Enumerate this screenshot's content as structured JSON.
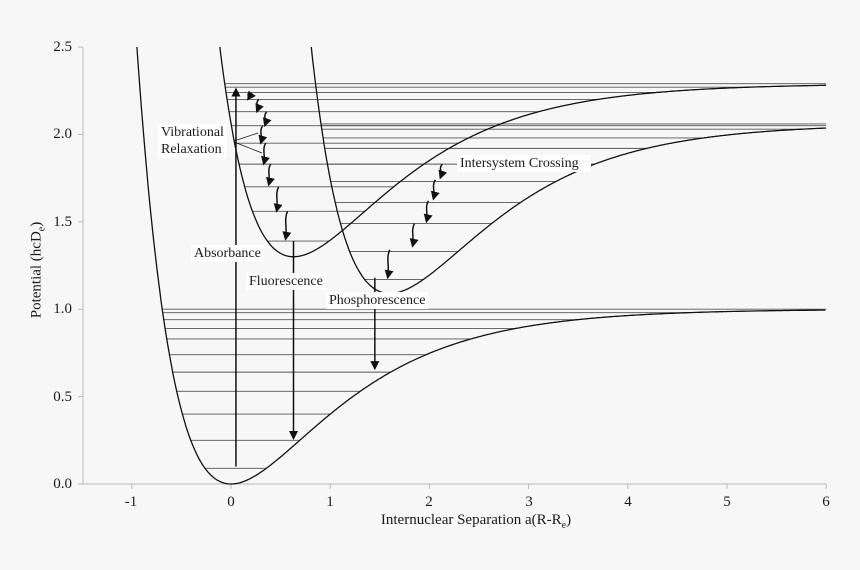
{
  "chart_data": {
    "type": "line",
    "title": "",
    "xlabel": "Internuclear Separation  a(R-R",
    "xlabel_sub": "e",
    "xlabel_end": ")",
    "ylabel": "Potential  (hcD",
    "ylabel_sub": "e",
    "ylabel_end": ")",
    "xlim": [
      -1.5,
      6
    ],
    "ylim": [
      0,
      2.5
    ],
    "xticks": [
      "-1",
      "0",
      "1",
      "2",
      "3",
      "4",
      "5",
      "6"
    ],
    "yticks": [
      "0.0",
      "0.5",
      "1.0",
      "1.5",
      "2.0",
      "2.5"
    ],
    "grid": false,
    "background": "#f7f7f7",
    "line_color": "#111111",
    "curves": [
      {
        "id": "ground",
        "x_min": 0,
        "y_min": 0,
        "depth": 1.0,
        "levels": [
          0.09,
          0.25,
          0.4,
          0.53,
          0.64,
          0.74,
          0.83,
          0.89,
          0.94,
          0.98,
          1.0
        ]
      },
      {
        "id": "singlet",
        "x_min": 0.63,
        "y_min": 1.3,
        "depth": 0.99,
        "levels": [
          1.39,
          1.56,
          1.7,
          1.83,
          1.95,
          2.05,
          2.13,
          2.2,
          2.24,
          2.27,
          2.29
        ]
      },
      {
        "id": "triplet",
        "x_min": 1.6,
        "y_min": 1.09,
        "depth": 0.97,
        "levels": [
          1.17,
          1.33,
          1.49,
          1.61,
          1.73,
          1.83,
          1.92,
          1.98,
          2.03,
          2.05,
          2.06
        ]
      }
    ],
    "transitions": [
      {
        "name": "Absorbance",
        "x": 0.05,
        "from": 0.1,
        "to": 2.26
      },
      {
        "name": "Fluorescence",
        "x": 0.63,
        "from": 1.39,
        "to": 0.26
      },
      {
        "name": "Phosphorescence",
        "x": 1.45,
        "from": 1.18,
        "to": 0.66
      }
    ],
    "relaxation_arrows": [
      {
        "x": 0.17,
        "from": 2.24,
        "to": 2.2
      },
      {
        "x": 0.26,
        "from": 2.2,
        "to": 2.13
      },
      {
        "x": 0.34,
        "from": 2.13,
        "to": 2.05
      },
      {
        "x": 0.3,
        "from": 2.05,
        "to": 1.95
      },
      {
        "x": 0.33,
        "from": 1.95,
        "to": 1.83
      },
      {
        "x": 0.38,
        "from": 1.83,
        "to": 1.71
      },
      {
        "x": 0.46,
        "from": 1.7,
        "to": 1.56
      },
      {
        "x": 0.55,
        "from": 1.56,
        "to": 1.4
      }
    ],
    "crossing_arrows": [
      {
        "x": 2.11,
        "from": 1.83,
        "to": 1.75
      },
      {
        "x": 2.04,
        "from": 1.74,
        "to": 1.63
      },
      {
        "x": 1.97,
        "from": 1.62,
        "to": 1.5
      },
      {
        "x": 1.83,
        "from": 1.49,
        "to": 1.36
      },
      {
        "x": 1.58,
        "from": 1.34,
        "to": 1.18
      }
    ],
    "annotations": {
      "vibrational_1": "Vibrational",
      "vibrational_2": "Relaxation",
      "absorbance": "Absorbance",
      "fluorescence": "Fluorescence",
      "phosphorescence": "Phosphorescence",
      "intersystem": "Intersystem Crossing"
    }
  }
}
